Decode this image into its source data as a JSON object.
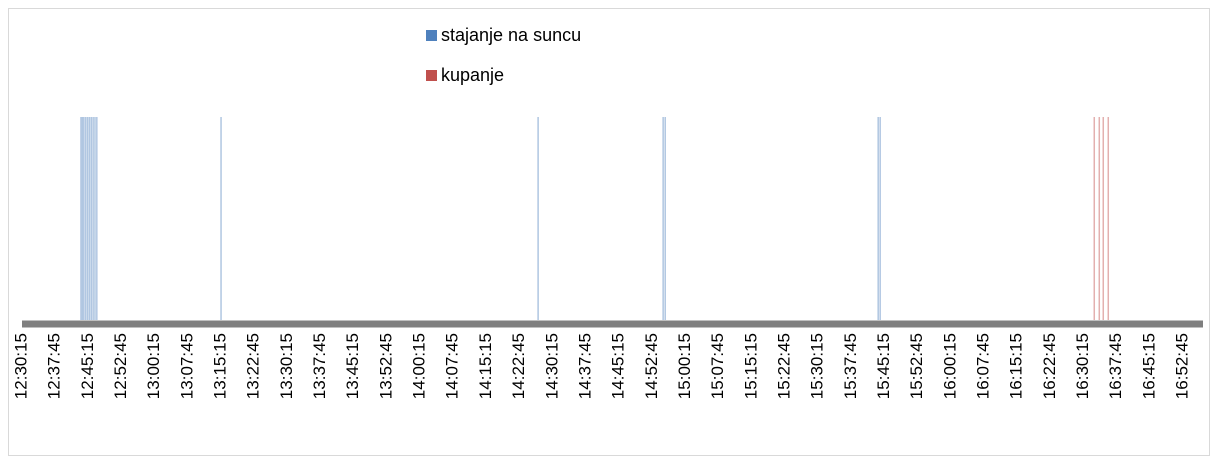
{
  "chart_data": {
    "type": "bar",
    "series": [
      {
        "name": "stajanje na suncu",
        "color": "#4f81bd",
        "x": [
          "12:43:35",
          "12:43:55",
          "12:44:15",
          "12:44:40",
          "12:45:05",
          "12:45:30",
          "12:45:55",
          "12:46:20",
          "12:46:45",
          "12:47:10",
          "13:15:15",
          "14:26:56",
          "14:55:12",
          "14:55:40",
          "15:43:49",
          "15:44:16"
        ],
        "values": [
          1,
          1,
          1,
          1,
          1,
          1,
          1,
          1,
          1,
          1,
          1,
          1,
          1,
          1,
          1,
          1
        ]
      },
      {
        "name": "kupanje",
        "color": "#c0504d",
        "x": [
          "16:32:40",
          "16:33:48",
          "16:34:42",
          "16:35:50"
        ],
        "values": [
          1,
          1,
          1,
          1
        ]
      }
    ],
    "xlim": [
      "12:30:15",
      "16:57:15"
    ],
    "xticks": [
      "12:30:15",
      "12:37:45",
      "12:45:15",
      "12:52:45",
      "13:00:15",
      "13:07:45",
      "13:15:15",
      "13:22:45",
      "13:30:15",
      "13:37:45",
      "13:45:15",
      "13:52:45",
      "14:00:15",
      "14:07:45",
      "14:15:15",
      "14:22:45",
      "14:30:15",
      "14:37:45",
      "14:45:15",
      "14:52:45",
      "15:00:15",
      "15:07:45",
      "15:15:15",
      "15:22:45",
      "15:30:15",
      "15:37:45",
      "15:45:15",
      "15:52:45",
      "16:00:15",
      "16:07:45",
      "16:15:15",
      "16:22:45",
      "16:30:15",
      "16:37:45",
      "16:45:15",
      "16:52:45"
    ],
    "ylim": [
      0,
      1
    ]
  }
}
